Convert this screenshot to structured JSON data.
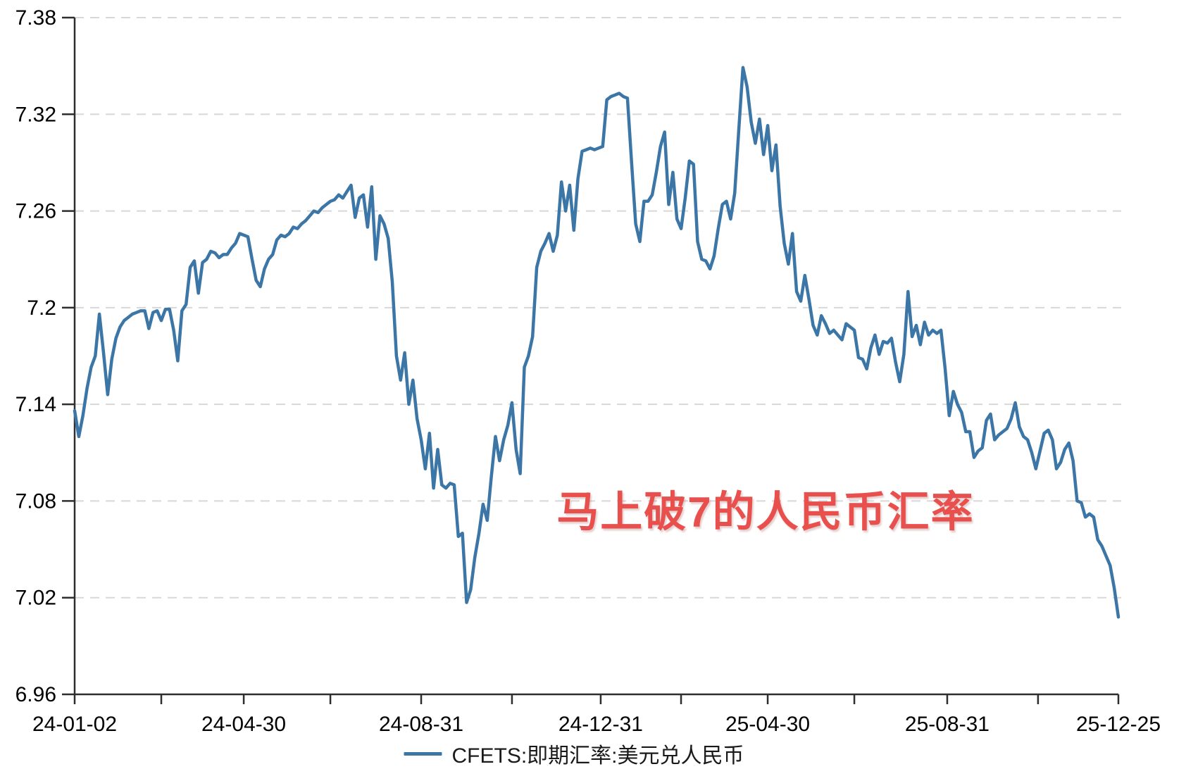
{
  "chart_data": {
    "type": "line",
    "title": "",
    "xlabel": "",
    "ylabel": "",
    "ylim": [
      6.96,
      7.38
    ],
    "grid": "horizontal-dashed",
    "grid_color": "#d8d8d8",
    "axis_color": "#2e2e2e",
    "tick_label_color": "#000000",
    "legend_position": "bottom-center",
    "y_ticks": [
      {
        "value": 6.96,
        "label": "6.96",
        "gridline": false
      },
      {
        "value": 7.02,
        "label": "7.02",
        "gridline": true
      },
      {
        "value": 7.08,
        "label": "7.08",
        "gridline": true
      },
      {
        "value": 7.14,
        "label": "7.14",
        "gridline": true
      },
      {
        "value": 7.2,
        "label": "7.2",
        "gridline": true
      },
      {
        "value": 7.26,
        "label": "7.26",
        "gridline": true
      },
      {
        "value": 7.32,
        "label": "7.32",
        "gridline": true
      },
      {
        "value": 7.38,
        "label": "7.38",
        "gridline": true
      }
    ],
    "x_ticks": [
      {
        "pos": 0.0,
        "label": "24-01-02"
      },
      {
        "pos": 0.083,
        "label": ""
      },
      {
        "pos": 0.162,
        "label": "24-04-30"
      },
      {
        "pos": 0.245,
        "label": ""
      },
      {
        "pos": 0.332,
        "label": "24-08-31"
      },
      {
        "pos": 0.419,
        "label": ""
      },
      {
        "pos": 0.504,
        "label": "24-12-31"
      },
      {
        "pos": 0.581,
        "label": ""
      },
      {
        "pos": 0.664,
        "label": "25-04-30"
      },
      {
        "pos": 0.747,
        "label": ""
      },
      {
        "pos": 0.836,
        "label": "25-08-31"
      },
      {
        "pos": 0.923,
        "label": ""
      },
      {
        "pos": 1.0,
        "label": "25-12-25"
      }
    ],
    "x_range_labels": [
      "24-01-02",
      "25-12-25"
    ],
    "series": [
      {
        "name": "CFETS:即期汇率:美元兑人民币",
        "color": "#3b76a6",
        "line_width": 4.5,
        "values": [
          7.136,
          7.12,
          7.133,
          7.15,
          7.163,
          7.17,
          7.196,
          7.172,
          7.146,
          7.168,
          7.181,
          7.188,
          7.192,
          7.194,
          7.196,
          7.197,
          7.198,
          7.198,
          7.187,
          7.197,
          7.198,
          7.192,
          7.199,
          7.199,
          7.186,
          7.167,
          7.198,
          7.202,
          7.225,
          7.229,
          7.209,
          7.228,
          7.23,
          7.235,
          7.234,
          7.231,
          7.233,
          7.233,
          7.237,
          7.24,
          7.246,
          7.245,
          7.244,
          7.23,
          7.217,
          7.213,
          7.224,
          7.23,
          7.233,
          7.242,
          7.245,
          7.244,
          7.246,
          7.25,
          7.249,
          7.252,
          7.254,
          7.257,
          7.26,
          7.259,
          7.262,
          7.264,
          7.266,
          7.267,
          7.27,
          7.268,
          7.272,
          7.276,
          7.256,
          7.268,
          7.27,
          7.25,
          7.275,
          7.23,
          7.257,
          7.252,
          7.243,
          7.216,
          7.17,
          7.155,
          7.172,
          7.14,
          7.155,
          7.131,
          7.118,
          7.1,
          7.122,
          7.088,
          7.112,
          7.09,
          7.088,
          7.091,
          7.09,
          7.058,
          7.06,
          7.017,
          7.025,
          7.045,
          7.06,
          7.078,
          7.068,
          7.095,
          7.12,
          7.105,
          7.118,
          7.127,
          7.141,
          7.112,
          7.097,
          7.163,
          7.17,
          7.182,
          7.225,
          7.235,
          7.24,
          7.246,
          7.235,
          7.245,
          7.278,
          7.26,
          7.276,
          7.248,
          7.28,
          7.297,
          7.298,
          7.299,
          7.298,
          7.299,
          7.3,
          7.329,
          7.331,
          7.332,
          7.333,
          7.331,
          7.33,
          7.29,
          7.252,
          7.241,
          7.266,
          7.266,
          7.27,
          7.284,
          7.3,
          7.309,
          7.264,
          7.284,
          7.255,
          7.249,
          7.268,
          7.291,
          7.289,
          7.241,
          7.23,
          7.229,
          7.224,
          7.232,
          7.249,
          7.264,
          7.266,
          7.255,
          7.271,
          7.311,
          7.349,
          7.337,
          7.315,
          7.302,
          7.317,
          7.295,
          7.313,
          7.285,
          7.301,
          7.263,
          7.24,
          7.227,
          7.246,
          7.21,
          7.204,
          7.22,
          7.205,
          7.189,
          7.183,
          7.195,
          7.19,
          7.184,
          7.186,
          7.183,
          7.18,
          7.19,
          7.188,
          7.186,
          7.169,
          7.168,
          7.162,
          7.175,
          7.183,
          7.171,
          7.179,
          7.178,
          7.181,
          7.166,
          7.154,
          7.171,
          7.21,
          7.182,
          7.189,
          7.177,
          7.191,
          7.183,
          7.186,
          7.184,
          7.186,
          7.162,
          7.133,
          7.148,
          7.14,
          7.135,
          7.123,
          7.123,
          7.107,
          7.111,
          7.113,
          7.13,
          7.134,
          7.118,
          7.121,
          7.123,
          7.125,
          7.131,
          7.141,
          7.126,
          7.12,
          7.118,
          7.11,
          7.1,
          7.111,
          7.122,
          7.124,
          7.118,
          7.1,
          7.104,
          7.112,
          7.116,
          7.105,
          7.08,
          7.079,
          7.07,
          7.072,
          7.07,
          7.056,
          7.052,
          7.046,
          7.04,
          7.026,
          7.008
        ]
      }
    ],
    "annotation": {
      "text": "马上破7的人民币汇率",
      "color": "#e8504d",
      "approx_center_value": 7.075
    },
    "last_value": 7.008,
    "max_value": 7.349,
    "min_value": 7.008
  },
  "legend": {
    "label": "CFETS:即期汇率:美元兑人民币",
    "swatch_color": "#3b76a6"
  }
}
